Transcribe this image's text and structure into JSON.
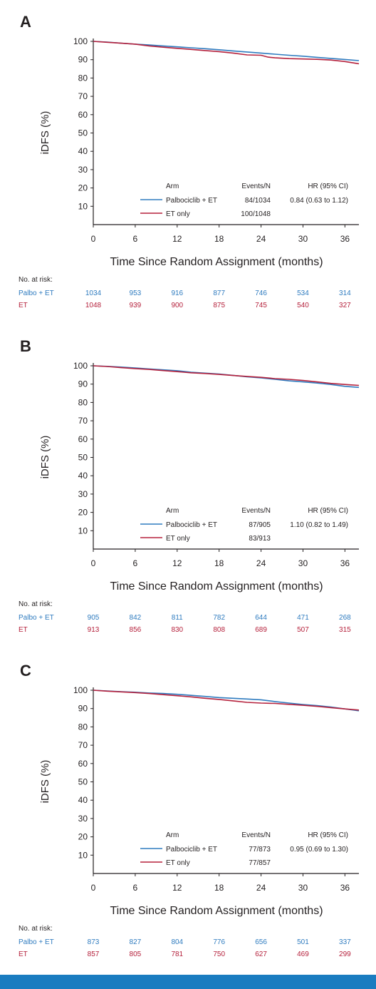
{
  "colors": {
    "palbo": "#2e7bbf",
    "et": "#b5213c",
    "bar": "#1a7cc0"
  },
  "risk_title": "No. at risk:",
  "chart_data": [
    {
      "panel": "A",
      "type": "line",
      "ylabel": "iDFS (%)",
      "xlabel": "Time Since Random Assignment (months)",
      "xlim": [
        0,
        38
      ],
      "ylim": [
        0,
        100
      ],
      "xticks": [
        0,
        6,
        12,
        18,
        24,
        30,
        36
      ],
      "yticks": [
        10,
        20,
        30,
        40,
        50,
        60,
        70,
        80,
        90,
        100
      ],
      "legend": {
        "headers": [
          "Arm",
          "Events/N",
          "HR (95% CI)"
        ],
        "rows": [
          {
            "arm": "Palbociclib + ET",
            "events": "84/1034",
            "hr": "0.84 (0.63 to 1.12)"
          },
          {
            "arm": "ET only",
            "events": "100/1048",
            "hr": ""
          }
        ]
      },
      "series": [
        {
          "name": "Palbociclib + ET",
          "x": [
            0,
            2,
            4,
            6,
            8,
            10,
            12,
            14,
            16,
            18,
            20,
            22,
            24,
            26,
            28,
            30,
            32,
            34,
            36,
            38
          ],
          "y": [
            100,
            99.6,
            99,
            98.5,
            98,
            97.5,
            97,
            96.5,
            96,
            95.4,
            94.8,
            94.2,
            93.6,
            93,
            92.4,
            91.9,
            91.3,
            90.7,
            90.1,
            89.5
          ]
        },
        {
          "name": "ET only",
          "x": [
            0,
            2,
            4,
            6,
            8,
            10,
            12,
            14,
            16,
            18,
            20,
            22,
            24,
            25,
            26,
            28,
            30,
            32,
            34,
            36,
            38
          ],
          "y": [
            100,
            99.5,
            99,
            98.5,
            97.5,
            96.8,
            96.2,
            95.6,
            95,
            94.4,
            93.6,
            92.6,
            92.4,
            91.4,
            91,
            90.6,
            90.4,
            90.2,
            89.8,
            89,
            87.8
          ]
        }
      ],
      "at_risk": {
        "times": [
          0,
          6,
          12,
          18,
          24,
          30,
          36
        ],
        "rows": [
          {
            "label": "Palbo + ET",
            "values": [
              "1034",
              "953",
              "916",
              "877",
              "746",
              "534",
              "314"
            ]
          },
          {
            "label": "ET",
            "values": [
              "1048",
              "939",
              "900",
              "875",
              "745",
              "540",
              "327"
            ]
          }
        ]
      }
    },
    {
      "panel": "B",
      "type": "line",
      "ylabel": "iDFS (%)",
      "xlabel": "Time Since Random Assignment (months)",
      "xlim": [
        0,
        38
      ],
      "ylim": [
        0,
        100
      ],
      "xticks": [
        0,
        6,
        12,
        18,
        24,
        30,
        36
      ],
      "yticks": [
        10,
        20,
        30,
        40,
        50,
        60,
        70,
        80,
        90,
        100
      ],
      "legend": {
        "headers": [
          "Arm",
          "Events/N",
          "HR (95% CI)"
        ],
        "rows": [
          {
            "arm": "Palbociclib + ET",
            "events": "87/905",
            "hr": "1.10 (0.82 to 1.49)"
          },
          {
            "arm": "ET only",
            "events": "83/913",
            "hr": ""
          }
        ]
      },
      "series": [
        {
          "name": "Palbociclib + ET",
          "x": [
            0,
            2,
            4,
            6,
            8,
            10,
            12,
            14,
            16,
            18,
            20,
            22,
            24,
            26,
            28,
            30,
            32,
            34,
            36,
            38
          ],
          "y": [
            100,
            99.7,
            99.3,
            98.8,
            98.3,
            97.8,
            97.3,
            96.5,
            96,
            95.5,
            94.8,
            94,
            93.4,
            92.6,
            91.8,
            91.2,
            90.6,
            89.8,
            88.8,
            88.2
          ]
        },
        {
          "name": "ET only",
          "x": [
            0,
            2,
            4,
            6,
            8,
            10,
            12,
            14,
            16,
            18,
            20,
            22,
            24,
            26,
            28,
            30,
            32,
            34,
            36,
            38
          ],
          "y": [
            100,
            99.6,
            99,
            98.5,
            98,
            97.4,
            96.8,
            96.2,
            95.8,
            95.3,
            94.7,
            94.2,
            93.7,
            93,
            92.6,
            92,
            91.2,
            90.4,
            89.8,
            89.3
          ]
        }
      ],
      "at_risk": {
        "times": [
          0,
          6,
          12,
          18,
          24,
          30,
          36
        ],
        "rows": [
          {
            "label": "Palbo + ET",
            "values": [
              "905",
              "842",
              "811",
              "782",
              "644",
              "471",
              "268"
            ]
          },
          {
            "label": "ET",
            "values": [
              "913",
              "856",
              "830",
              "808",
              "689",
              "507",
              "315"
            ]
          }
        ]
      }
    },
    {
      "panel": "C",
      "type": "line",
      "ylabel": "iDFS (%)",
      "xlabel": "Time Since Random Assignment (months)",
      "xlim": [
        0,
        38
      ],
      "ylim": [
        0,
        100
      ],
      "xticks": [
        0,
        6,
        12,
        18,
        24,
        30,
        36
      ],
      "yticks": [
        10,
        20,
        30,
        40,
        50,
        60,
        70,
        80,
        90,
        100
      ],
      "legend": {
        "headers": [
          "Arm",
          "Events/N",
          "HR (95% CI)"
        ],
        "rows": [
          {
            "arm": "Palbociclib + ET",
            "events": "77/873",
            "hr": "0.95 (0.69 to 1.30)"
          },
          {
            "arm": "ET only",
            "events": "77/857",
            "hr": ""
          }
        ]
      },
      "series": [
        {
          "name": "Palbociclib + ET",
          "x": [
            0,
            2,
            4,
            6,
            8,
            10,
            12,
            14,
            16,
            18,
            20,
            22,
            24,
            26,
            28,
            30,
            32,
            34,
            36,
            38
          ],
          "y": [
            100,
            99.6,
            99.2,
            98.9,
            98.5,
            98.2,
            97.8,
            97.2,
            96.6,
            96,
            95.6,
            95.2,
            94.8,
            93.8,
            93,
            92.2,
            91.6,
            90.8,
            89.8,
            88.8
          ]
        },
        {
          "name": "ET only",
          "x": [
            0,
            2,
            4,
            6,
            8,
            10,
            12,
            14,
            16,
            18,
            20,
            22,
            24,
            26,
            28,
            30,
            32,
            34,
            36,
            38
          ],
          "y": [
            100,
            99.5,
            99.1,
            98.7,
            98.2,
            97.6,
            97,
            96.4,
            95.6,
            95,
            94.2,
            93.4,
            93,
            92.8,
            92.3,
            91.8,
            91.2,
            90.5,
            89.8,
            89.2
          ]
        }
      ],
      "at_risk": {
        "times": [
          0,
          6,
          12,
          18,
          24,
          30,
          36
        ],
        "rows": [
          {
            "label": "Palbo + ET",
            "values": [
              "873",
              "827",
              "804",
              "776",
              "656",
              "501",
              "337"
            ]
          },
          {
            "label": "ET",
            "values": [
              "857",
              "805",
              "781",
              "750",
              "627",
              "469",
              "299"
            ]
          }
        ]
      }
    }
  ]
}
